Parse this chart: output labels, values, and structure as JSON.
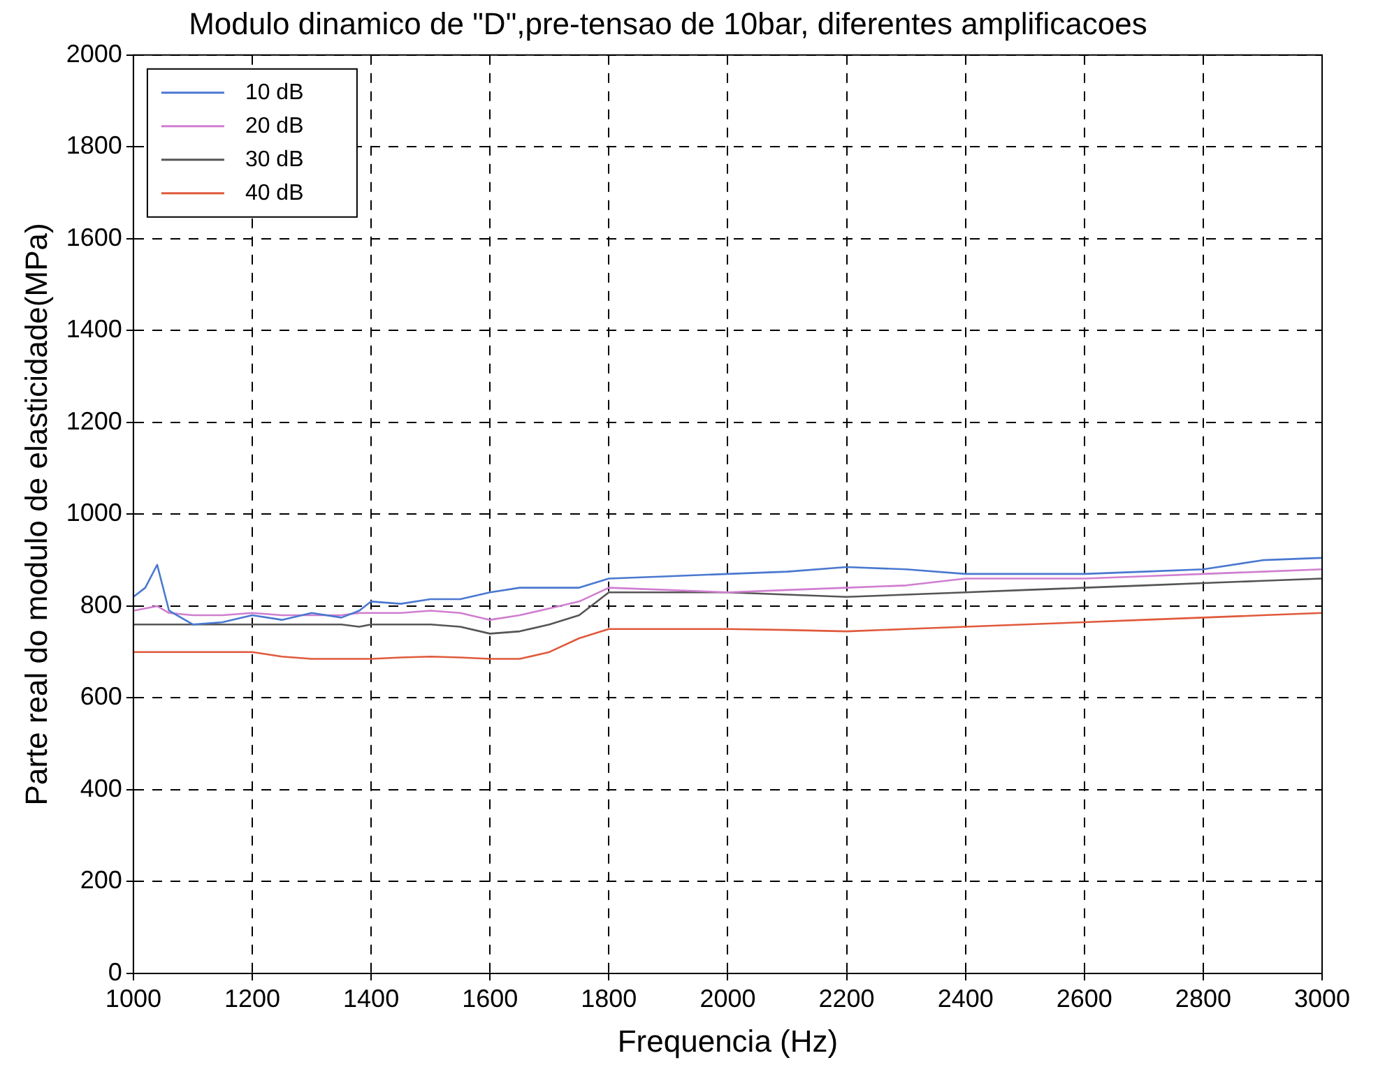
{
  "chart_data": {
    "type": "line",
    "title": "Modulo dinamico de \"D\",pre-tensao de 10bar, diferentes amplificacoes",
    "xlabel": "Frequencia (Hz)",
    "ylabel": "Parte real do modulo de elasticidade(MPa)",
    "x": [
      1000,
      1020,
      1040,
      1060,
      1100,
      1150,
      1200,
      1250,
      1300,
      1350,
      1380,
      1400,
      1450,
      1500,
      1550,
      1600,
      1650,
      1700,
      1750,
      1800,
      1900,
      2000,
      2100,
      2200,
      2300,
      2400,
      2500,
      2600,
      2700,
      2800,
      2900,
      3000
    ],
    "series": [
      {
        "name": "10 dB",
        "color": "#4a78d0",
        "values": [
          820,
          840,
          890,
          790,
          760,
          765,
          780,
          770,
          785,
          775,
          790,
          810,
          805,
          815,
          815,
          830,
          840,
          840,
          840,
          860,
          865,
          870,
          875,
          885,
          880,
          870,
          870,
          870,
          875,
          880,
          900,
          905
        ]
      },
      {
        "name": "20 dB",
        "color": "#d07ed0",
        "values": [
          790,
          795,
          800,
          785,
          780,
          780,
          785,
          780,
          780,
          780,
          785,
          785,
          785,
          790,
          785,
          770,
          780,
          795,
          810,
          840,
          835,
          830,
          835,
          840,
          845,
          860,
          860,
          860,
          865,
          870,
          875,
          880
        ]
      },
      {
        "name": "30 dB",
        "color": "#555555",
        "values": [
          760,
          760,
          760,
          760,
          760,
          760,
          760,
          760,
          760,
          760,
          755,
          760,
          760,
          760,
          755,
          740,
          745,
          760,
          780,
          830,
          830,
          830,
          825,
          820,
          825,
          830,
          835,
          840,
          845,
          850,
          855,
          860
        ]
      },
      {
        "name": "40 dB",
        "color": "#e05a3c",
        "values": [
          700,
          700,
          700,
          700,
          700,
          700,
          700,
          690,
          685,
          685,
          685,
          685,
          688,
          690,
          688,
          685,
          685,
          700,
          730,
          750,
          750,
          750,
          748,
          745,
          750,
          755,
          760,
          765,
          770,
          775,
          780,
          785
        ]
      }
    ],
    "xlim": [
      1000,
      3000
    ],
    "xticks": [
      1000,
      1200,
      1400,
      1600,
      1800,
      2000,
      2200,
      2400,
      2600,
      2800,
      3000
    ],
    "ylim": [
      0,
      2000
    ],
    "yticks": [
      0,
      200,
      400,
      600,
      800,
      1000,
      1200,
      1400,
      1600,
      1800,
      2000
    ],
    "grid": true,
    "legend": "top left",
    "marker": "none",
    "line_style": "solid"
  }
}
